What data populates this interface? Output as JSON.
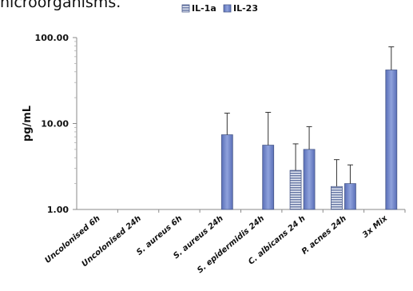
{
  "caption_fragment": "nicroorganisms.",
  "chart_data": {
    "type": "bar",
    "scale": "log",
    "ylim": [
      1,
      100
    ],
    "yticks": [
      "1.00",
      "10.00",
      "100.00"
    ],
    "ylabel": "pg/mL",
    "xlabel": "",
    "grid": false,
    "legend_position": "top",
    "categories": [
      "Uncolonised 6h",
      "Uncolonised 24h",
      "S. aureus 6h",
      "S. aureus 24h",
      "S. epidermidis 24h",
      "C. albicans 24 h",
      "P. acnes 24h",
      "3x Mix"
    ],
    "series": [
      {
        "name": "IL-1a",
        "pattern": "horizontal-stripes",
        "color": "#8e9bb5",
        "values": [
          null,
          null,
          null,
          null,
          null,
          2.85,
          1.85,
          null
        ],
        "error_upper": [
          null,
          null,
          null,
          null,
          null,
          5.8,
          3.8,
          null
        ]
      },
      {
        "name": "IL-23",
        "pattern": "solid",
        "color": "#7287c6",
        "values": [
          null,
          null,
          null,
          7.4,
          5.6,
          5.0,
          2.0,
          42
        ],
        "error_upper": [
          null,
          null,
          null,
          13.2,
          13.5,
          9.2,
          3.3,
          78
        ]
      }
    ]
  }
}
